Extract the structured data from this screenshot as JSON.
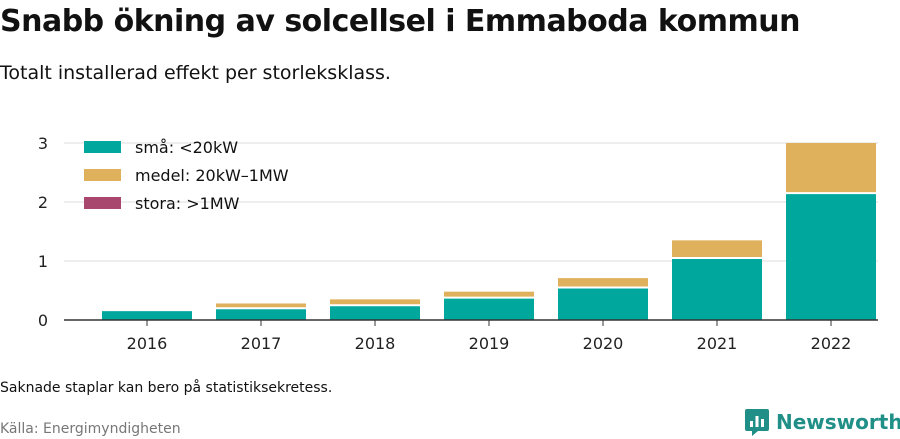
{
  "title": "Snabb ökning av solcellsel i Emmaboda kommun",
  "subtitle": "Totalt installerad effekt per storleksklass.",
  "note": "Saknade staplar kan bero på statistiksekretess.",
  "source": "Källa: Energimyndigheten",
  "brand": {
    "name": "Newsworthy",
    "icon": "newsworthy-logo-icon",
    "color": "#1f8f87"
  },
  "chart_data": {
    "type": "bar",
    "stacked": true,
    "categories": [
      "2016",
      "2017",
      "2018",
      "2019",
      "2020",
      "2021",
      "2022"
    ],
    "series": [
      {
        "name": "små: <20kW",
        "color": "#00a79d",
        "values": [
          0.15,
          0.2,
          0.25,
          0.38,
          0.55,
          1.05,
          2.15
        ]
      },
      {
        "name": "medel: 20kW–1MW",
        "color": "#e0b15c",
        "values": [
          0,
          0.08,
          0.1,
          0.1,
          0.16,
          0.3,
          0.85
        ]
      },
      {
        "name": "stora: >1MW",
        "color": "#a8466e",
        "values": [
          0,
          0,
          0,
          0,
          0,
          0,
          0
        ]
      }
    ],
    "yticks": [
      0,
      1,
      2,
      3
    ],
    "ylim": [
      0,
      3
    ],
    "grid": true,
    "legend_position": "top-left"
  }
}
